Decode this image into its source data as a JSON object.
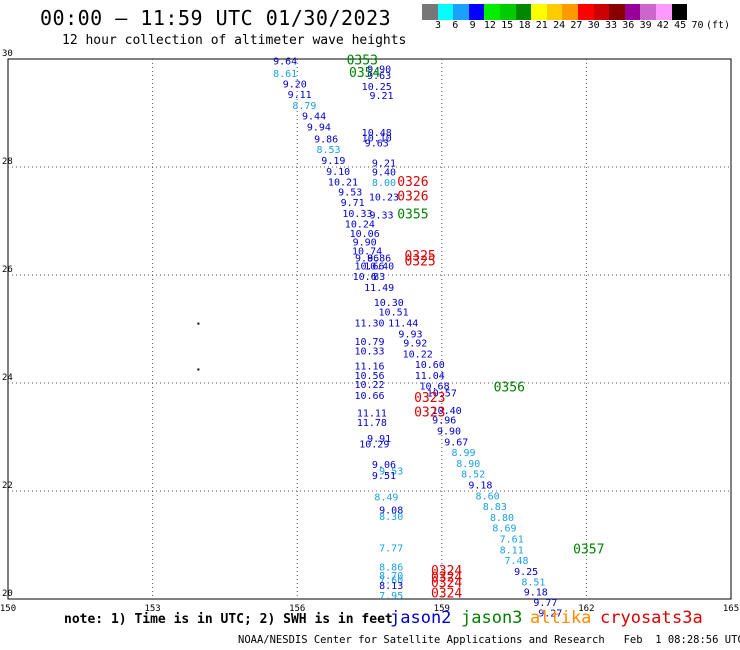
{
  "header": {
    "title": "00:00 – 11:59 UTC 01/30/2023",
    "subtitle": "12 hour collection of altimeter wave heights"
  },
  "colorbar": {
    "colors": [
      "#777777",
      "#00ffff",
      "#1ca0ff",
      "#0000ff",
      "#00ee00",
      "#00cc00",
      "#008800",
      "#ffff00",
      "#ffcc00",
      "#ff9900",
      "#ff0000",
      "#cc0000",
      "#880000",
      "#990099",
      "#cc66cc",
      "#ff99ff",
      "#000000"
    ],
    "labels": [
      "3",
      "6",
      "9",
      "12",
      "15",
      "18",
      "21",
      "24",
      "27",
      "30",
      "33",
      "36",
      "39",
      "42",
      "45",
      "70"
    ],
    "unit": "(ft)"
  },
  "map": {
    "lon_range": [
      150,
      165
    ],
    "lat_range": [
      20,
      30
    ],
    "lon_ticks": [
      "150",
      "153",
      "156",
      "159",
      "162",
      "165"
    ],
    "lat_ticks": [
      "20",
      "22",
      "24",
      "26",
      "28",
      "30"
    ],
    "island_points": [
      [
        153.95,
        25.1
      ],
      [
        153.95,
        24.25
      ]
    ],
    "satellites": {
      "jason2": "#0000cc",
      "jason3": "#008000",
      "altika": "#ff8c00",
      "cryosat": "#dd0000",
      "s3a": "#dd0000",
      "cyan": "#1ca0e0"
    },
    "observations": [
      {
        "lon": 155.75,
        "lat": 29.97,
        "text": "9.64",
        "c": "jason2"
      },
      {
        "lon": 155.75,
        "lat": 29.74,
        "text": "8.61",
        "c": "cyan"
      },
      {
        "lon": 155.95,
        "lat": 29.55,
        "text": "9.20",
        "c": "jason2"
      },
      {
        "lon": 156.05,
        "lat": 29.35,
        "text": "9.11",
        "c": "jason2"
      },
      {
        "lon": 156.15,
        "lat": 29.15,
        "text": "8.79",
        "c": "cyan"
      },
      {
        "lon": 156.35,
        "lat": 28.95,
        "text": "9.44",
        "c": "jason2"
      },
      {
        "lon": 156.45,
        "lat": 28.75,
        "text": "9.94",
        "c": "jason2"
      },
      {
        "lon": 156.6,
        "lat": 28.53,
        "text": "9.86",
        "c": "jason2"
      },
      {
        "lon": 156.65,
        "lat": 28.33,
        "text": "8.53",
        "c": "cyan"
      },
      {
        "lon": 156.75,
        "lat": 28.13,
        "text": "9.19",
        "c": "jason2"
      },
      {
        "lon": 156.85,
        "lat": 27.93,
        "text": "9.10",
        "c": "jason2"
      },
      {
        "lon": 156.95,
        "lat": 27.73,
        "text": "10.21",
        "c": "jason2"
      },
      {
        "lon": 157.1,
        "lat": 27.55,
        "text": "9.53",
        "c": "jason2"
      },
      {
        "lon": 157.15,
        "lat": 27.35,
        "text": "9.71",
        "c": "jason2"
      },
      {
        "lon": 157.25,
        "lat": 27.15,
        "text": "10.33",
        "c": "jason2"
      },
      {
        "lon": 157.3,
        "lat": 26.95,
        "text": "10.24",
        "c": "jason2"
      },
      {
        "lon": 157.4,
        "lat": 26.78,
        "text": "10.06",
        "c": "jason2"
      },
      {
        "lon": 157.4,
        "lat": 26.62,
        "text": "9.90",
        "c": "jason2"
      },
      {
        "lon": 157.45,
        "lat": 26.45,
        "text": "10.74",
        "c": "jason2"
      },
      {
        "lon": 157.45,
        "lat": 26.32,
        "text": "9.86",
        "c": "jason2"
      },
      {
        "lon": 157.5,
        "lat": 26.18,
        "text": "10.66",
        "c": "jason2"
      },
      {
        "lon": 157.4,
        "lat": 25.98,
        "text": "10.6",
        "c": "jason2"
      },
      {
        "lon": 157.7,
        "lat": 25.98,
        "text": "83",
        "c": "jason2"
      },
      {
        "lon": 157.7,
        "lat": 25.78,
        "text": "11.49",
        "c": "jason2"
      },
      {
        "lon": 157.9,
        "lat": 25.5,
        "text": "10.30",
        "c": "jason2"
      },
      {
        "lon": 158.0,
        "lat": 25.32,
        "text": "10.51",
        "c": "jason2"
      },
      {
        "lon": 157.5,
        "lat": 25.12,
        "text": "11.30",
        "c": "jason2"
      },
      {
        "lon": 158.2,
        "lat": 25.12,
        "text": "11.44",
        "c": "jason2"
      },
      {
        "lon": 158.35,
        "lat": 24.92,
        "text": "9.93",
        "c": "jason2"
      },
      {
        "lon": 157.5,
        "lat": 24.78,
        "text": "10.79",
        "c": "jason2"
      },
      {
        "lon": 158.45,
        "lat": 24.75,
        "text": "9.92",
        "c": "jason2"
      },
      {
        "lon": 157.5,
        "lat": 24.6,
        "text": "10.33",
        "c": "jason2"
      },
      {
        "lon": 158.5,
        "lat": 24.55,
        "text": "10.22",
        "c": "jason2"
      },
      {
        "lon": 158.75,
        "lat": 24.35,
        "text": "10.60",
        "c": "jason2"
      },
      {
        "lon": 157.5,
        "lat": 24.32,
        "text": "11.16",
        "c": "jason2"
      },
      {
        "lon": 157.5,
        "lat": 24.15,
        "text": "10.56",
        "c": "jason2"
      },
      {
        "lon": 158.75,
        "lat": 24.15,
        "text": "11.04",
        "c": "jason2"
      },
      {
        "lon": 157.5,
        "lat": 23.98,
        "text": "10.22",
        "c": "jason2"
      },
      {
        "lon": 158.85,
        "lat": 23.95,
        "text": "10.68",
        "c": "jason2"
      },
      {
        "lon": 157.5,
        "lat": 23.78,
        "text": "10.66",
        "c": "jason2"
      },
      {
        "lon": 159.0,
        "lat": 23.82,
        "text": "10.57",
        "c": "jason2"
      },
      {
        "lon": 157.55,
        "lat": 23.45,
        "text": "11.11",
        "c": "jason2"
      },
      {
        "lon": 159.1,
        "lat": 23.5,
        "text": "10.40",
        "c": "jason2"
      },
      {
        "lon": 157.55,
        "lat": 23.28,
        "text": "11.78",
        "c": "jason2"
      },
      {
        "lon": 159.05,
        "lat": 23.32,
        "text": "9.96",
        "c": "jason2"
      },
      {
        "lon": 159.15,
        "lat": 23.12,
        "text": "9.90",
        "c": "jason2"
      },
      {
        "lon": 157.7,
        "lat": 22.98,
        "text": "9.91",
        "c": "jason2"
      },
      {
        "lon": 157.6,
        "lat": 22.88,
        "text": "10.29",
        "c": "jason2"
      },
      {
        "lon": 159.3,
        "lat": 22.92,
        "text": "9.67",
        "c": "jason2"
      },
      {
        "lon": 159.45,
        "lat": 22.72,
        "text": "8.99",
        "c": "cyan"
      },
      {
        "lon": 157.8,
        "lat": 22.5,
        "text": "9.06",
        "c": "jason2"
      },
      {
        "lon": 159.55,
        "lat": 22.52,
        "text": "8.90",
        "c": "cyan"
      },
      {
        "lon": 157.95,
        "lat": 22.38,
        "text": "9.53",
        "c": "cyan"
      },
      {
        "lon": 157.8,
        "lat": 22.3,
        "text": "9.51",
        "c": "jason2"
      },
      {
        "lon": 159.65,
        "lat": 22.32,
        "text": "8.52",
        "c": "cyan"
      },
      {
        "lon": 159.8,
        "lat": 22.12,
        "text": "9.18",
        "c": "jason2"
      },
      {
        "lon": 159.95,
        "lat": 21.92,
        "text": "8.60",
        "c": "cyan"
      },
      {
        "lon": 157.85,
        "lat": 21.9,
        "text": "8.49",
        "c": "cyan"
      },
      {
        "lon": 160.1,
        "lat": 21.72,
        "text": "8.83",
        "c": "cyan"
      },
      {
        "lon": 157.95,
        "lat": 21.66,
        "text": "9.08",
        "c": "jason2"
      },
      {
        "lon": 160.25,
        "lat": 21.52,
        "text": "8.80",
        "c": "cyan"
      },
      {
        "lon": 157.95,
        "lat": 21.54,
        "text": "8.30",
        "c": "cyan"
      },
      {
        "lon": 160.3,
        "lat": 21.32,
        "text": "8.69",
        "c": "cyan"
      },
      {
        "lon": 160.45,
        "lat": 21.12,
        "text": "7.61",
        "c": "cyan"
      },
      {
        "lon": 157.95,
        "lat": 20.95,
        "text": "7.77",
        "c": "cyan"
      },
      {
        "lon": 160.45,
        "lat": 20.92,
        "text": "8.11",
        "c": "cyan"
      },
      {
        "lon": 160.55,
        "lat": 20.72,
        "text": "7.48",
        "c": "cyan"
      },
      {
        "lon": 157.95,
        "lat": 20.6,
        "text": "8.86",
        "c": "cyan"
      },
      {
        "lon": 160.75,
        "lat": 20.52,
        "text": "9.25",
        "c": "jason2"
      },
      {
        "lon": 157.95,
        "lat": 20.44,
        "text": "8.70",
        "c": "cyan"
      },
      {
        "lon": 157.95,
        "lat": 20.36,
        "text": "7.60",
        "c": "cyan"
      },
      {
        "lon": 160.9,
        "lat": 20.32,
        "text": "8.51",
        "c": "cyan"
      },
      {
        "lon": 157.95,
        "lat": 20.26,
        "text": "8.13",
        "c": "jason2"
      },
      {
        "lon": 160.95,
        "lat": 20.14,
        "text": "9.18",
        "c": "jason2"
      },
      {
        "lon": 157.95,
        "lat": 20.07,
        "text": "7.95",
        "c": "cyan"
      },
      {
        "lon": 161.15,
        "lat": 19.94,
        "text": "9.77",
        "c": "jason2"
      },
      {
        "lon": 161.25,
        "lat": 19.75,
        "text": "9.27",
        "c": "jason2"
      },
      {
        "lon": 157.7,
        "lat": 29.82,
        "text": "9.90",
        "c": "jason2"
      },
      {
        "lon": 157.7,
        "lat": 29.7,
        "text": "9.63",
        "c": "jason2"
      },
      {
        "lon": 157.65,
        "lat": 29.5,
        "text": "10.25",
        "c": "jason2"
      },
      {
        "lon": 157.75,
        "lat": 29.33,
        "text": "9.21",
        "c": "jason2"
      },
      {
        "lon": 157.65,
        "lat": 28.65,
        "text": "10.48",
        "c": "jason2"
      },
      {
        "lon": 157.65,
        "lat": 28.55,
        "text": "10.10",
        "c": "jason2"
      },
      {
        "lon": 157.65,
        "lat": 28.45,
        "text": "9.63",
        "c": "jason2"
      },
      {
        "lon": 157.8,
        "lat": 28.08,
        "text": "9.21",
        "c": "jason2"
      },
      {
        "lon": 157.8,
        "lat": 27.92,
        "text": "9.40",
        "c": "jason2"
      },
      {
        "lon": 157.8,
        "lat": 27.72,
        "text": "8.00",
        "c": "cyan"
      },
      {
        "lon": 157.8,
        "lat": 27.45,
        "text": "10.23",
        "c": "jason2"
      },
      {
        "lon": 157.75,
        "lat": 27.12,
        "text": "9.33",
        "c": "jason2"
      },
      {
        "lon": 157.7,
        "lat": 26.32,
        "text": "9.86",
        "c": "jason2"
      },
      {
        "lon": 157.7,
        "lat": 26.18,
        "text": "10.40",
        "c": "jason2"
      },
      {
        "lon": 157.35,
        "lat": 29.97,
        "text": "0353",
        "c": "jason3",
        "big": true
      },
      {
        "lon": 157.4,
        "lat": 29.74,
        "text": "0354",
        "c": "jason3",
        "big": true
      },
      {
        "lon": 158.4,
        "lat": 27.12,
        "text": "0355",
        "c": "jason3",
        "big": true
      },
      {
        "lon": 160.4,
        "lat": 23.92,
        "text": "0356",
        "c": "jason3",
        "big": true
      },
      {
        "lon": 162.05,
        "lat": 20.92,
        "text": "0357",
        "c": "jason3",
        "big": true
      },
      {
        "lon": 158.4,
        "lat": 27.72,
        "text": "0326",
        "c": "cryosat",
        "big": true
      },
      {
        "lon": 158.4,
        "lat": 27.45,
        "text": "0326",
        "c": "cryosat",
        "big": true
      },
      {
        "lon": 158.55,
        "lat": 26.35,
        "text": "0325",
        "c": "cryosat",
        "big": true
      },
      {
        "lon": 158.55,
        "lat": 26.25,
        "text": "0325",
        "c": "cryosat",
        "big": true
      },
      {
        "lon": 158.75,
        "lat": 23.72,
        "text": "0323",
        "c": "cryosat",
        "big": true
      },
      {
        "lon": 158.75,
        "lat": 23.45,
        "text": "0323",
        "c": "cryosat",
        "big": true
      },
      {
        "lon": 159.1,
        "lat": 20.52,
        "text": "0324",
        "c": "cryosat",
        "big": true
      },
      {
        "lon": 159.1,
        "lat": 20.4,
        "text": "0324",
        "c": "cryosat",
        "big": true
      },
      {
        "lon": 159.1,
        "lat": 20.3,
        "text": "0324",
        "c": "cryosat",
        "big": true
      },
      {
        "lon": 159.1,
        "lat": 20.1,
        "text": "0324",
        "c": "cryosat",
        "big": true
      }
    ]
  },
  "note": "note: 1) Time is in UTC; 2) SWH is in feet",
  "legend": [
    {
      "label": "jason2",
      "color": "#0000cc"
    },
    {
      "label": "jason3",
      "color": "#008000"
    },
    {
      "label": "altika",
      "color": "#ff8c00"
    },
    {
      "label": "cryosat",
      "color": "#dd0000"
    },
    {
      "label": "s3a",
      "color": "#dd0000"
    }
  ],
  "footer": "NOAA/NESDIS Center for Satellite Applications and Research   Feb  1 08:28:56 UTC 2023"
}
